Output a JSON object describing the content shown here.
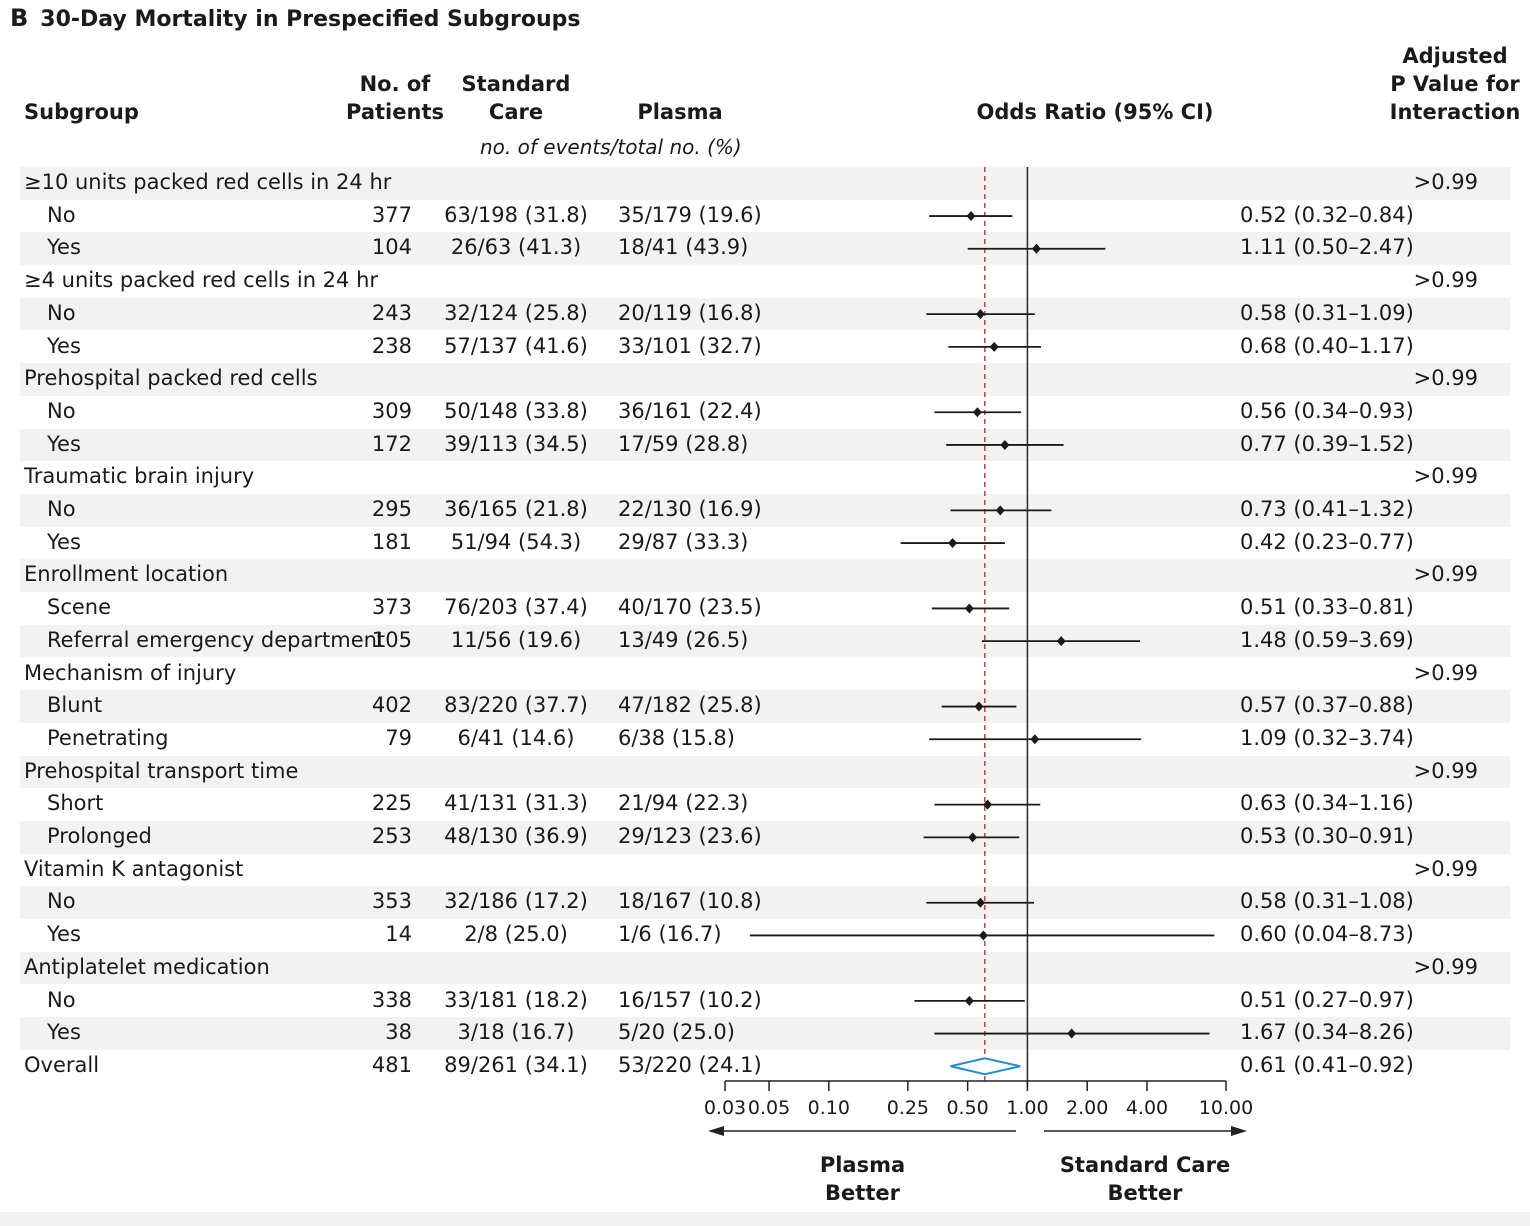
{
  "panel": {
    "letter": "B",
    "title": "30-Day Mortality in Prespecified Subgroups"
  },
  "headers": {
    "subgroup": "Subgroup",
    "patients_line1": "No. of",
    "patients_line2": "Patients",
    "standard_line1": "Standard",
    "standard_line2": "Care",
    "plasma": "Plasma",
    "odds": "Odds Ratio (95% CI)",
    "pvalue_line1": "Adjusted",
    "pvalue_line2": "P Value for",
    "pvalue_line3": "Interaction",
    "units": "no. of events/total no. (%)"
  },
  "axis": {
    "ticks": [
      "0.03",
      "0.05",
      "0.10",
      "0.25",
      "0.50",
      "1.00",
      "2.00",
      "4.00",
      "10.00"
    ],
    "left_label_line1": "Plasma",
    "left_label_line2": "Better",
    "right_label_line1": "Standard Care",
    "right_label_line2": "Better"
  },
  "chart_data": {
    "type": "forest",
    "x_scale": "log",
    "xlim": [
      0.03,
      10
    ],
    "reference_line": 1.0,
    "overall_reference_line": 0.61,
    "rows": [
      {
        "kind": "group",
        "label": "≥10 units packed red cells in 24 hr",
        "p": ">0.99"
      },
      {
        "kind": "item",
        "label": "No",
        "n": "377",
        "sc": "63/198 (31.8)",
        "pl": "35/179 (19.6)",
        "or_text": "0.52 (0.32–0.84)",
        "or": 0.52,
        "lo": 0.32,
        "hi": 0.84
      },
      {
        "kind": "item",
        "label": "Yes",
        "n": "104",
        "sc": "26/63 (41.3)",
        "pl": "18/41 (43.9)",
        "or_text": "1.11 (0.50–2.47)",
        "or": 1.11,
        "lo": 0.5,
        "hi": 2.47
      },
      {
        "kind": "group",
        "label": "≥4 units packed red cells in 24 hr",
        "p": ">0.99"
      },
      {
        "kind": "item",
        "label": "No",
        "n": "243",
        "sc": "32/124 (25.8)",
        "pl": "20/119 (16.8)",
        "or_text": "0.58 (0.31–1.09)",
        "or": 0.58,
        "lo": 0.31,
        "hi": 1.09
      },
      {
        "kind": "item",
        "label": "Yes",
        "n": "238",
        "sc": "57/137 (41.6)",
        "pl": "33/101 (32.7)",
        "or_text": "0.68 (0.40–1.17)",
        "or": 0.68,
        "lo": 0.4,
        "hi": 1.17
      },
      {
        "kind": "group",
        "label": "Prehospital packed red cells",
        "p": ">0.99"
      },
      {
        "kind": "item",
        "label": "No",
        "n": "309",
        "sc": "50/148 (33.8)",
        "pl": "36/161 (22.4)",
        "or_text": "0.56 (0.34–0.93)",
        "or": 0.56,
        "lo": 0.34,
        "hi": 0.93
      },
      {
        "kind": "item",
        "label": "Yes",
        "n": "172",
        "sc": "39/113 (34.5)",
        "pl": "17/59 (28.8)",
        "or_text": "0.77 (0.39–1.52)",
        "or": 0.77,
        "lo": 0.39,
        "hi": 1.52
      },
      {
        "kind": "group",
        "label": "Traumatic brain injury",
        "p": ">0.99"
      },
      {
        "kind": "item",
        "label": "No",
        "n": "295",
        "sc": "36/165 (21.8)",
        "pl": "22/130 (16.9)",
        "or_text": "0.73 (0.41–1.32)",
        "or": 0.73,
        "lo": 0.41,
        "hi": 1.32
      },
      {
        "kind": "item",
        "label": "Yes",
        "n": "181",
        "sc": "51/94 (54.3)",
        "pl": "29/87 (33.3)",
        "or_text": "0.42 (0.23–0.77)",
        "or": 0.42,
        "lo": 0.23,
        "hi": 0.77
      },
      {
        "kind": "group",
        "label": "Enrollment location",
        "p": ">0.99"
      },
      {
        "kind": "item",
        "label": "Scene",
        "n": "373",
        "sc": "76/203 (37.4)",
        "pl": "40/170 (23.5)",
        "or_text": "0.51 (0.33–0.81)",
        "or": 0.51,
        "lo": 0.33,
        "hi": 0.81
      },
      {
        "kind": "item",
        "label": "Referral emergency department",
        "n": "105",
        "sc": "11/56 (19.6)",
        "pl": "13/49 (26.5)",
        "or_text": "1.48 (0.59–3.69)",
        "or": 1.48,
        "lo": 0.59,
        "hi": 3.69
      },
      {
        "kind": "group",
        "label": "Mechanism of injury",
        "p": ">0.99"
      },
      {
        "kind": "item",
        "label": "Blunt",
        "n": "402",
        "sc": "83/220 (37.7)",
        "pl": "47/182 (25.8)",
        "or_text": "0.57 (0.37–0.88)",
        "or": 0.57,
        "lo": 0.37,
        "hi": 0.88
      },
      {
        "kind": "item",
        "label": "Penetrating",
        "n": "79",
        "sc": "6/41 (14.6)",
        "pl": "6/38 (15.8)",
        "or_text": "1.09 (0.32–3.74)",
        "or": 1.09,
        "lo": 0.32,
        "hi": 3.74
      },
      {
        "kind": "group",
        "label": "Prehospital transport time",
        "p": ">0.99"
      },
      {
        "kind": "item",
        "label": "Short",
        "n": "225",
        "sc": "41/131 (31.3)",
        "pl": "21/94 (22.3)",
        "or_text": "0.63 (0.34–1.16)",
        "or": 0.63,
        "lo": 0.34,
        "hi": 1.16
      },
      {
        "kind": "item",
        "label": "Prolonged",
        "n": "253",
        "sc": "48/130 (36.9)",
        "pl": "29/123 (23.6)",
        "or_text": "0.53 (0.30–0.91)",
        "or": 0.53,
        "lo": 0.3,
        "hi": 0.91
      },
      {
        "kind": "group",
        "label": "Vitamin K antagonist",
        "p": ">0.99"
      },
      {
        "kind": "item",
        "label": "No",
        "n": "353",
        "sc": "32/186 (17.2)",
        "pl": "18/167 (10.8)",
        "or_text": "0.58 (0.31–1.08)",
        "or": 0.58,
        "lo": 0.31,
        "hi": 1.08
      },
      {
        "kind": "item",
        "label": "Yes",
        "n": "14",
        "sc": "2/8 (25.0)",
        "pl": "1/6 (16.7)",
        "or_text": "0.60 (0.04–8.73)",
        "or": 0.6,
        "lo": 0.04,
        "hi": 8.73
      },
      {
        "kind": "group",
        "label": "Antiplatelet medication",
        "p": ">0.99"
      },
      {
        "kind": "item",
        "label": "No",
        "n": "338",
        "sc": "33/181 (18.2)",
        "pl": "16/157 (10.2)",
        "or_text": "0.51 (0.27–0.97)",
        "or": 0.51,
        "lo": 0.27,
        "hi": 0.97
      },
      {
        "kind": "item",
        "label": "Yes",
        "n": "38",
        "sc": "3/18 (16.7)",
        "pl": "5/20 (25.0)",
        "or_text": "1.67 (0.34–8.26)",
        "or": 1.67,
        "lo": 0.34,
        "hi": 8.26
      },
      {
        "kind": "overall",
        "label": "Overall",
        "n": "481",
        "sc": "89/261 (34.1)",
        "pl": "53/220 (24.1)",
        "or_text": "0.61 (0.41–0.92)",
        "or": 0.61,
        "lo": 0.41,
        "hi": 0.92
      }
    ],
    "colors": {
      "overall_diamond": "#1f8fd0",
      "reference_dashed": "#d9403a",
      "marks": "#1a1a1a"
    }
  }
}
